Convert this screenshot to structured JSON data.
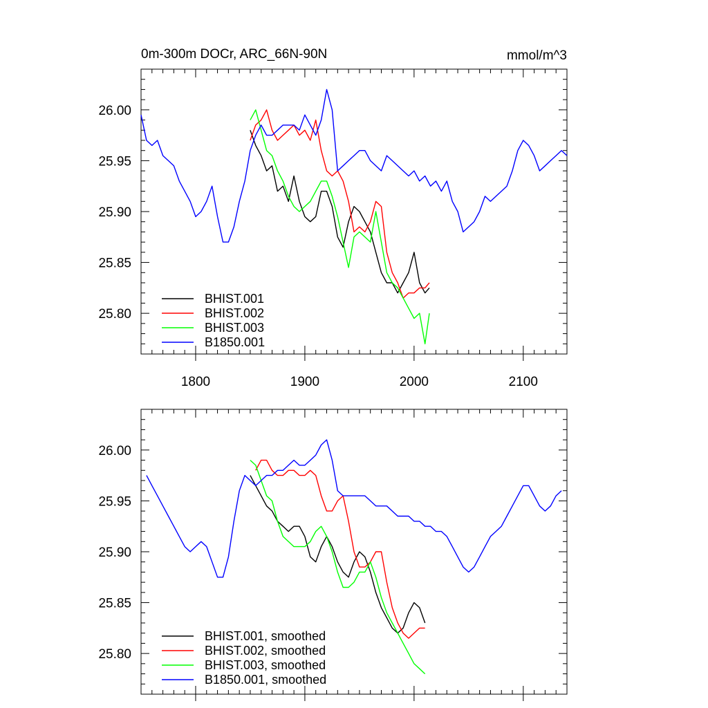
{
  "chart_data": [
    {
      "type": "line",
      "title": "0m-300m DOCr, ARC_66N-90N",
      "units": "mmol/m^3",
      "xlim": [
        1750,
        2140
      ],
      "ylim": [
        25.76,
        26.04
      ],
      "x_ticks": [
        1800,
        1900,
        2000,
        2100
      ],
      "x_tick_labels": [
        "1800",
        "1900",
        "2000",
        "2100"
      ],
      "y_ticks": [
        25.8,
        25.85,
        25.9,
        25.95,
        26.0
      ],
      "y_tick_labels": [
        "25.80",
        "25.85",
        "25.90",
        "25.95",
        "26.00"
      ],
      "legend_position": "bottom-left",
      "series": [
        {
          "name": "BHIST.001",
          "color": "#000000",
          "x": [
            1850,
            1855,
            1860,
            1865,
            1870,
            1875,
            1880,
            1885,
            1890,
            1895,
            1900,
            1905,
            1910,
            1915,
            1920,
            1925,
            1930,
            1935,
            1940,
            1945,
            1950,
            1955,
            1960,
            1965,
            1970,
            1975,
            1980,
            1985,
            1990,
            1995,
            2000,
            2005,
            2010,
            2014
          ],
          "y": [
            25.98,
            25.965,
            25.955,
            25.94,
            25.945,
            25.92,
            25.925,
            25.91,
            25.935,
            25.91,
            25.895,
            25.89,
            25.895,
            25.92,
            25.92,
            25.905,
            25.875,
            25.865,
            25.89,
            25.905,
            25.9,
            25.89,
            25.88,
            25.86,
            25.84,
            25.83,
            25.83,
            25.82,
            25.83,
            25.84,
            25.86,
            25.83,
            25.82,
            25.825
          ]
        },
        {
          "name": "BHIST.002",
          "color": "#ff0000",
          "x": [
            1850,
            1855,
            1860,
            1865,
            1870,
            1875,
            1880,
            1885,
            1890,
            1895,
            1900,
            1905,
            1910,
            1915,
            1920,
            1925,
            1930,
            1935,
            1940,
            1945,
            1950,
            1955,
            1960,
            1965,
            1970,
            1975,
            1980,
            1985,
            1990,
            1995,
            2000,
            2005,
            2010,
            2014
          ],
          "y": [
            25.97,
            25.985,
            25.99,
            26.0,
            25.98,
            25.97,
            25.975,
            25.98,
            25.985,
            25.975,
            25.98,
            25.97,
            25.99,
            25.96,
            25.94,
            25.935,
            25.94,
            25.93,
            25.91,
            25.88,
            25.885,
            25.88,
            25.89,
            25.91,
            25.905,
            25.86,
            25.84,
            25.83,
            25.815,
            25.82,
            25.82,
            25.825,
            25.825,
            25.83
          ]
        },
        {
          "name": "BHIST.003",
          "color": "#00ff00",
          "x": [
            1850,
            1855,
            1860,
            1865,
            1870,
            1875,
            1880,
            1885,
            1890,
            1895,
            1900,
            1905,
            1910,
            1915,
            1920,
            1925,
            1930,
            1935,
            1940,
            1945,
            1950,
            1955,
            1960,
            1965,
            1970,
            1975,
            1980,
            1985,
            1990,
            1995,
            2000,
            2005,
            2010,
            2014
          ],
          "y": [
            25.99,
            26.0,
            25.98,
            25.96,
            25.955,
            25.94,
            25.93,
            25.915,
            25.905,
            25.9,
            25.905,
            25.91,
            25.92,
            25.93,
            25.93,
            25.915,
            25.895,
            25.87,
            25.845,
            25.875,
            25.88,
            25.875,
            25.87,
            25.9,
            25.87,
            25.84,
            25.83,
            25.825,
            25.815,
            25.805,
            25.795,
            25.8,
            25.77,
            25.8
          ]
        },
        {
          "name": "B1850.001",
          "color": "#0000ff",
          "x": [
            1750,
            1755,
            1760,
            1765,
            1770,
            1775,
            1780,
            1785,
            1790,
            1795,
            1800,
            1805,
            1810,
            1815,
            1820,
            1825,
            1830,
            1835,
            1840,
            1845,
            1850,
            1855,
            1860,
            1865,
            1870,
            1875,
            1880,
            1885,
            1890,
            1895,
            1900,
            1905,
            1910,
            1915,
            1920,
            1925,
            1930,
            1935,
            1940,
            1945,
            1950,
            1955,
            1960,
            1965,
            1970,
            1975,
            1980,
            1985,
            1990,
            1995,
            2000,
            2005,
            2010,
            2015,
            2020,
            2025,
            2030,
            2035,
            2040,
            2045,
            2050,
            2055,
            2060,
            2065,
            2070,
            2075,
            2080,
            2085,
            2090,
            2095,
            2100,
            2105,
            2110,
            2115,
            2120,
            2125,
            2130,
            2135,
            2140
          ],
          "y": [
            25.995,
            25.97,
            25.965,
            25.97,
            25.955,
            25.95,
            25.945,
            25.93,
            25.92,
            25.91,
            25.895,
            25.9,
            25.91,
            25.925,
            25.895,
            25.87,
            25.87,
            25.885,
            25.91,
            25.93,
            25.96,
            25.975,
            25.985,
            25.975,
            25.975,
            25.98,
            25.985,
            25.985,
            25.985,
            25.98,
            25.995,
            25.985,
            25.975,
            25.99,
            26.02,
            26.0,
            25.94,
            25.945,
            25.95,
            25.955,
            25.96,
            25.96,
            25.95,
            25.945,
            25.94,
            25.955,
            25.95,
            25.945,
            25.94,
            25.935,
            25.94,
            25.93,
            25.935,
            25.925,
            25.93,
            25.92,
            25.93,
            25.91,
            25.9,
            25.88,
            25.885,
            25.89,
            25.9,
            25.915,
            25.91,
            25.915,
            25.92,
            25.925,
            25.94,
            25.96,
            25.97,
            25.965,
            25.955,
            25.94,
            25.945,
            25.95,
            25.955,
            25.96,
            25.955
          ]
        }
      ]
    },
    {
      "type": "line",
      "title": "",
      "xlim": [
        1750,
        2140
      ],
      "ylim": [
        25.76,
        26.04
      ],
      "y_ticks": [
        25.8,
        25.85,
        25.9,
        25.95,
        26.0
      ],
      "y_tick_labels": [
        "25.80",
        "25.85",
        "25.90",
        "25.95",
        "26.00"
      ],
      "legend_position": "bottom-left",
      "series": [
        {
          "name": "BHIST.001, smoothed",
          "color": "#000000",
          "x": [
            1850,
            1855,
            1860,
            1865,
            1870,
            1875,
            1880,
            1885,
            1890,
            1895,
            1900,
            1905,
            1910,
            1915,
            1920,
            1925,
            1930,
            1935,
            1940,
            1945,
            1950,
            1955,
            1960,
            1965,
            1970,
            1975,
            1980,
            1985,
            1990,
            1995,
            2000,
            2005,
            2010
          ],
          "y": [
            25.975,
            25.965,
            25.955,
            25.945,
            25.94,
            25.93,
            25.925,
            25.92,
            25.925,
            25.925,
            25.915,
            25.895,
            25.89,
            25.905,
            25.915,
            25.905,
            25.89,
            25.88,
            25.875,
            25.89,
            25.9,
            25.895,
            25.88,
            25.86,
            25.845,
            25.835,
            25.825,
            25.82,
            25.825,
            25.84,
            25.85,
            25.845,
            25.83
          ]
        },
        {
          "name": "BHIST.002, smoothed",
          "color": "#ff0000",
          "x": [
            1855,
            1860,
            1865,
            1870,
            1875,
            1880,
            1885,
            1890,
            1895,
            1900,
            1905,
            1910,
            1915,
            1920,
            1925,
            1930,
            1935,
            1940,
            1945,
            1950,
            1955,
            1960,
            1965,
            1970,
            1975,
            1980,
            1985,
            1990,
            1995,
            2000,
            2005,
            2010
          ],
          "y": [
            25.98,
            25.99,
            25.99,
            25.98,
            25.975,
            25.975,
            25.98,
            25.98,
            25.975,
            25.975,
            25.98,
            25.975,
            25.955,
            25.94,
            25.94,
            25.95,
            25.955,
            25.93,
            25.9,
            25.885,
            25.885,
            25.89,
            25.9,
            25.9,
            25.87,
            25.845,
            25.83,
            25.82,
            25.815,
            25.82,
            25.825,
            25.825
          ]
        },
        {
          "name": "BHIST.003, smoothed",
          "color": "#00ff00",
          "x": [
            1850,
            1855,
            1860,
            1865,
            1870,
            1875,
            1880,
            1885,
            1890,
            1895,
            1900,
            1905,
            1910,
            1915,
            1920,
            1925,
            1930,
            1935,
            1940,
            1945,
            1950,
            1955,
            1960,
            1965,
            1970,
            1975,
            1980,
            1985,
            1990,
            1995,
            2000,
            2005,
            2010
          ],
          "y": [
            25.99,
            25.985,
            25.97,
            25.955,
            25.95,
            25.93,
            25.915,
            25.91,
            25.905,
            25.905,
            25.905,
            25.91,
            25.92,
            25.925,
            25.915,
            25.9,
            25.88,
            25.865,
            25.865,
            25.87,
            25.88,
            25.88,
            25.89,
            25.875,
            25.855,
            25.84,
            25.83,
            25.82,
            25.81,
            25.8,
            25.79,
            25.785,
            25.78
          ]
        },
        {
          "name": "B1850.001, smoothed",
          "color": "#0000ff",
          "x": [
            1755,
            1760,
            1765,
            1770,
            1775,
            1780,
            1785,
            1790,
            1795,
            1800,
            1805,
            1810,
            1815,
            1820,
            1825,
            1830,
            1835,
            1840,
            1845,
            1850,
            1855,
            1860,
            1865,
            1870,
            1875,
            1880,
            1885,
            1890,
            1895,
            1900,
            1905,
            1910,
            1915,
            1920,
            1925,
            1930,
            1935,
            1940,
            1945,
            1950,
            1955,
            1960,
            1965,
            1970,
            1975,
            1980,
            1985,
            1990,
            1995,
            2000,
            2005,
            2010,
            2015,
            2020,
            2025,
            2030,
            2035,
            2040,
            2045,
            2050,
            2055,
            2060,
            2065,
            2070,
            2075,
            2080,
            2085,
            2090,
            2095,
            2100,
            2105,
            2110,
            2115,
            2120,
            2125,
            2130,
            2135
          ],
          "y": [
            25.975,
            25.965,
            25.955,
            25.945,
            25.935,
            25.925,
            25.915,
            25.905,
            25.9,
            25.905,
            25.91,
            25.905,
            25.89,
            25.875,
            25.875,
            25.895,
            25.93,
            25.96,
            25.975,
            25.97,
            25.965,
            25.97,
            25.975,
            25.975,
            25.98,
            25.98,
            25.985,
            25.99,
            25.985,
            25.985,
            25.99,
            25.995,
            26.005,
            26.01,
            25.99,
            25.96,
            25.955,
            25.955,
            25.955,
            25.955,
            25.955,
            25.95,
            25.945,
            25.945,
            25.945,
            25.94,
            25.935,
            25.935,
            25.935,
            25.93,
            25.93,
            25.925,
            25.925,
            25.92,
            25.92,
            25.915,
            25.905,
            25.895,
            25.885,
            25.88,
            25.885,
            25.895,
            25.905,
            25.915,
            25.92,
            25.925,
            25.935,
            25.945,
            25.955,
            25.965,
            25.965,
            25.955,
            25.945,
            25.94,
            25.945,
            25.955,
            25.96
          ]
        }
      ]
    }
  ]
}
